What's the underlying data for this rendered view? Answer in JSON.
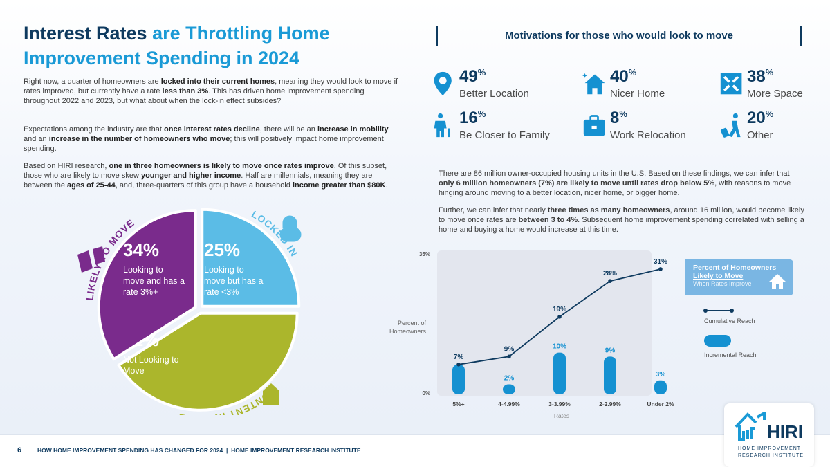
{
  "title": {
    "part1": "Interest Rates",
    "part2": "are Throttling Home",
    "part3": "Improvement Spending in 2024"
  },
  "left_paragraphs": [
    [
      {
        "t": "Right now, a quarter of homeowners are "
      },
      {
        "t": "locked into their current homes",
        "b": true
      },
      {
        "t": ", meaning they would look to move if rates improved, but currently have a rate "
      },
      {
        "t": "less than 3%",
        "b": true
      },
      {
        "t": ". This has driven home improvement spending throughout 2022 and 2023, but what about when the lock-in effect subsides?"
      }
    ],
    [
      {
        "t": "Expectations among the industry are that "
      },
      {
        "t": "once interest rates decline",
        "b": true
      },
      {
        "t": ", there will be an "
      },
      {
        "t": "increase in mobility",
        "b": true
      },
      {
        "t": " and an "
      },
      {
        "t": "increase in the number of homeowners who move",
        "b": true
      },
      {
        "t": "; this will positively impact home improvement spending."
      }
    ],
    [
      {
        "t": "Based on HIRI research, "
      },
      {
        "t": "one in three homeowners is likely to move once rates improve",
        "b": true
      },
      {
        "t": ". Of this subset, those who are likely to move skew "
      },
      {
        "t": "younger and higher income",
        "b": true
      },
      {
        "t": ". Half are millennials, meaning they are between the "
      },
      {
        "t": "ages of 25-44",
        "b": true
      },
      {
        "t": ", and, three-quarters of this group have a household "
      },
      {
        "t": "income greater than $80K",
        "b": true
      },
      {
        "t": "."
      }
    ]
  ],
  "motivations": {
    "heading": "Motivations for those who would look to move",
    "items": [
      {
        "pct": "49",
        "label": "Better Location",
        "icon": "map-pin-icon"
      },
      {
        "pct": "40",
        "label": "Nicer Home",
        "icon": "house-sparkle-icon"
      },
      {
        "pct": "38",
        "label": "More Space",
        "icon": "expand-arrows-icon"
      },
      {
        "pct": "16",
        "label": "Be Closer to Family",
        "icon": "elder-person-icon"
      },
      {
        "pct": "8",
        "label": "Work Relocation",
        "icon": "briefcase-icon"
      },
      {
        "pct": "20",
        "label": "Other",
        "icon": "traveler-luggage-icon"
      }
    ]
  },
  "right_paragraphs": [
    [
      {
        "t": "There are 86 million owner-occupied housing units in the U.S. Based on these findings, we can infer that "
      },
      {
        "t": "only 6 million homeowners (7%) are likely to move until rates drop below 5%",
        "b": true
      },
      {
        "t": ", with reasons to move hinging around moving to a better location, nicer home, or bigger home."
      }
    ],
    [
      {
        "t": "Further, we can infer that nearly "
      },
      {
        "t": "three times as many homeowners",
        "b": true
      },
      {
        "t": ", around 16 million, would become likely to move once rates are "
      },
      {
        "t": "between 3 to 4%",
        "b": true
      },
      {
        "t": ". Subsequent home improvement spending correlated with selling a home and buying a home would increase at this time."
      }
    ]
  ],
  "chart_data": [
    {
      "type": "pie",
      "slices": [
        {
          "value": 25,
          "pct": "25%",
          "desc": "Looking to move but has a rate <3%",
          "arc_label": "LOCKED IN",
          "color": "#5bbce6",
          "icon": "lock-icon"
        },
        {
          "value": 41,
          "pct": "41%",
          "desc": "Not Looking to Move",
          "arc_label": "CONTENT IN HOME",
          "color": "#abb62c",
          "icon": "house-heart-icon"
        },
        {
          "value": 34,
          "pct": "34%",
          "desc": "Looking to move and has a rate 3%+",
          "arc_label": "LIKELY TO MOVE",
          "color": "#7a2b8c",
          "icon": "people-moving-icon"
        }
      ]
    },
    {
      "type": "bar",
      "xlabel": "Rates",
      "ylabel": "Percent of Homeowners",
      "ylim": [
        0,
        35
      ],
      "ytick_labels": [
        "0%",
        "35%"
      ],
      "categories": [
        "5%+",
        "4-4.99%",
        "3-3.99%",
        "2-2.99%",
        "Under 2%"
      ],
      "legend": {
        "title": "Percent of Homeowners",
        "title2": "Likely to Move",
        "subtitle": "When Rates Improve",
        "position": "right"
      },
      "series": [
        {
          "name": "Cumulative Reach",
          "type": "line",
          "values": [
            7,
            9,
            19,
            28,
            31
          ],
          "color": "#0e3a5f"
        },
        {
          "name": "Incremental Reach",
          "type": "bar",
          "values": [
            7,
            2,
            10,
            9,
            3
          ],
          "color": "#1591d1"
        }
      ]
    }
  ],
  "footer": {
    "page": "6",
    "text": "HOW HOME IMPROVEMENT SPENDING HAS CHANGED FOR 2024  |  HOME IMPROVEMENT RESEARCH INSTITUTE"
  },
  "logo": {
    "name": "HIRI",
    "line1": "HOME IMPROVEMENT",
    "line2": "RESEARCH INSTITUTE"
  }
}
